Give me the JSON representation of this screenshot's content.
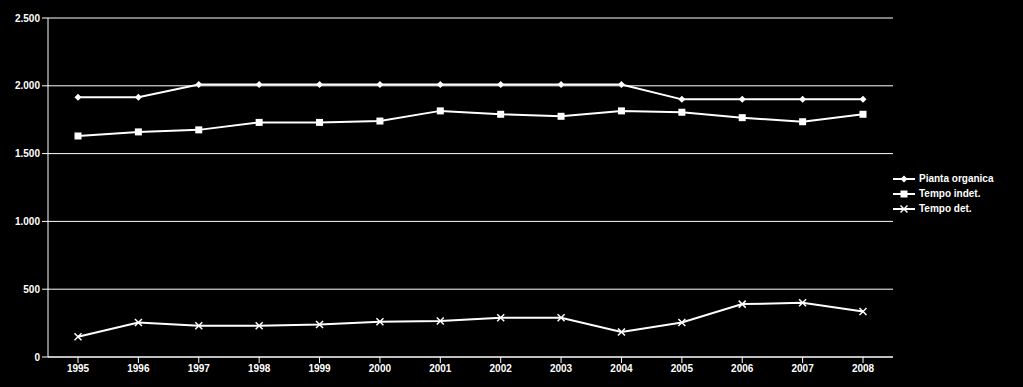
{
  "chart_data": {
    "type": "line",
    "categories": [
      "1995",
      "1996",
      "1997",
      "1998",
      "1999",
      "2000",
      "2001",
      "2002",
      "2003",
      "2004",
      "2005",
      "2006",
      "2007",
      "2008"
    ],
    "series": [
      {
        "name": "Pianta organica",
        "color": "#ffffff",
        "marker": "diamond",
        "values": [
          1915,
          1915,
          2010,
          2010,
          2010,
          2010,
          2010,
          2010,
          2010,
          2010,
          1900,
          1900,
          1900,
          1900
        ]
      },
      {
        "name": "Tempo indet.",
        "color": "#ffffff",
        "marker": "square",
        "values": [
          1630,
          1660,
          1675,
          1730,
          1730,
          1740,
          1815,
          1790,
          1775,
          1815,
          1805,
          1765,
          1735,
          1790
        ]
      },
      {
        "name": "Tempo det.",
        "color": "#ffffff",
        "marker": "x",
        "values": [
          150,
          255,
          230,
          230,
          240,
          260,
          265,
          290,
          290,
          185,
          255,
          390,
          400,
          335
        ]
      }
    ],
    "ylim": [
      0,
      2500
    ],
    "yticks": [
      0,
      500,
      {
        "value": 1000,
        "label": "1.000"
      },
      {
        "value": 1500,
        "label": "1.500"
      },
      {
        "value": 2000,
        "label": "2.000"
      },
      {
        "value": 2500,
        "label": "2.500"
      }
    ],
    "grid": true,
    "legend": "right"
  }
}
